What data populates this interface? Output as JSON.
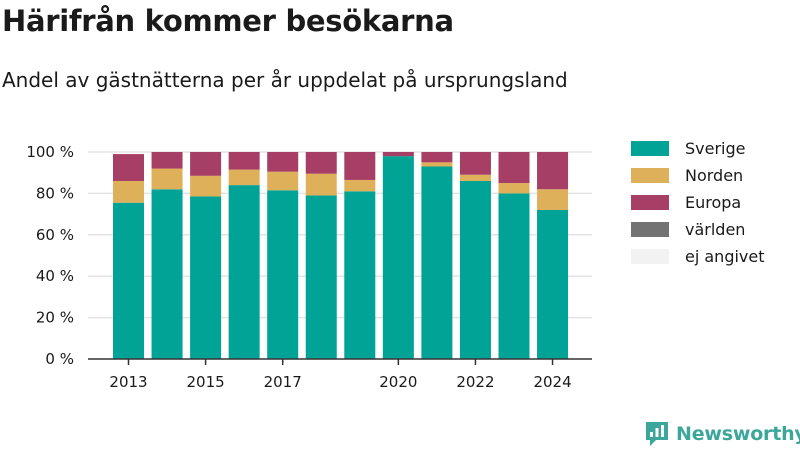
{
  "title": "Härifrån kommer besökarna",
  "subtitle": "Andel av gästnätterna per år uppdelat på ursprungsland",
  "brand": "Newsworthy",
  "chart_data": {
    "type": "bar",
    "stacked": true,
    "categories": [
      "2013",
      "2014",
      "2015",
      "2016",
      "2017",
      "2018",
      "2019",
      "2020",
      "2021",
      "2022",
      "2023",
      "2024"
    ],
    "x_tick_labels": [
      "2013",
      "2015",
      "2017",
      "2020",
      "2022",
      "2024"
    ],
    "y_tick_labels": [
      "0 %",
      "20 %",
      "40 %",
      "60 %",
      "80 %",
      "100 %"
    ],
    "ylim": [
      0,
      100
    ],
    "grid": true,
    "legend_position": "right",
    "series": [
      {
        "name": "Sverige",
        "color": "#00a396",
        "values": [
          75.5,
          82,
          78.5,
          84,
          81.5,
          79,
          81,
          98,
          93,
          86,
          80,
          72
        ]
      },
      {
        "name": "Norden",
        "color": "#dfb05a",
        "values": [
          10.5,
          10,
          10,
          7.5,
          9,
          10.5,
          5.5,
          0,
          2,
          3,
          5,
          10
        ]
      },
      {
        "name": "Europa",
        "color": "#a73e65",
        "values": [
          13,
          8,
          11.5,
          8.5,
          9.5,
          10.5,
          13.5,
          2,
          5,
          11,
          15,
          18
        ]
      },
      {
        "name": "världen",
        "color": "#737373",
        "values": [
          0,
          0,
          0,
          0,
          0,
          0,
          0,
          0,
          0,
          0,
          0,
          0
        ]
      },
      {
        "name": "ej angivet",
        "color": "#f2f2f2",
        "values": [
          0,
          0,
          0,
          0,
          0,
          0,
          0,
          0,
          0,
          0,
          0,
          0
        ]
      }
    ]
  }
}
